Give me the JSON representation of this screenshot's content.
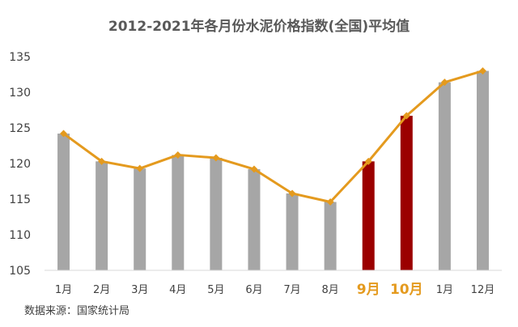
{
  "chart_data": {
    "type": "bar",
    "title": "2012-2021年各月份水泥价格指数(全国)平均值",
    "categories": [
      "1月",
      "2月",
      "3月",
      "4月",
      "5月",
      "6月",
      "7月",
      "8月",
      "9月",
      "10月",
      "1月",
      "12月"
    ],
    "highlighted_categories": [
      "9月",
      "10月"
    ],
    "series": [
      {
        "kind": "bar",
        "values": [
          124.2,
          120.3,
          119.3,
          121.2,
          120.8,
          119.2,
          115.8,
          114.6,
          120.3,
          126.7,
          131.4,
          133.0
        ]
      },
      {
        "kind": "line",
        "values": [
          124.2,
          120.3,
          119.3,
          121.2,
          120.8,
          119.2,
          115.8,
          114.6,
          120.3,
          126.7,
          131.4,
          133.0
        ]
      }
    ],
    "ylim": [
      105,
      135
    ],
    "yticks": [
      105,
      110,
      115,
      120,
      125,
      130,
      135
    ],
    "xlabel": "",
    "ylabel": "",
    "grid": false,
    "legend": "none",
    "colors": {
      "bar": "#A6A6A6",
      "bar_highlight": "#9B0000",
      "line": "#E49A1E",
      "highlight_label": "#E49A1E",
      "axis": "#D9D9D9"
    }
  },
  "source_note": "数据来源：国家统计局"
}
